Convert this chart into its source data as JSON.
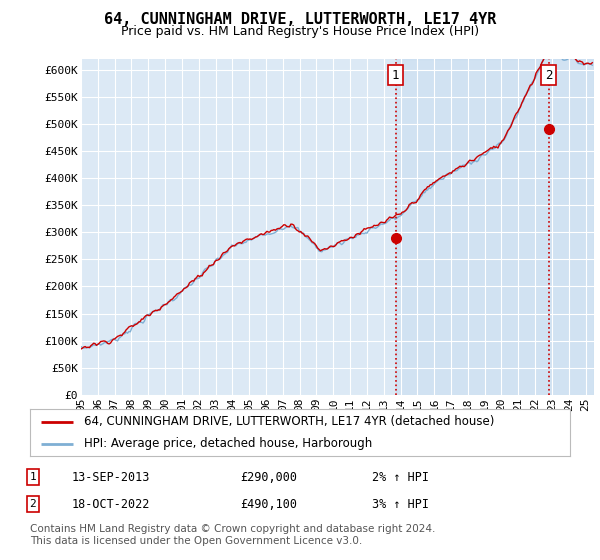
{
  "title": "64, CUNNINGHAM DRIVE, LUTTERWORTH, LE17 4YR",
  "subtitle": "Price paid vs. HM Land Registry's House Price Index (HPI)",
  "ylabel_ticks": [
    "£0",
    "£50K",
    "£100K",
    "£150K",
    "£200K",
    "£250K",
    "£300K",
    "£350K",
    "£400K",
    "£450K",
    "£500K",
    "£550K",
    "£600K"
  ],
  "ytick_values": [
    0,
    50000,
    100000,
    150000,
    200000,
    250000,
    300000,
    350000,
    400000,
    450000,
    500000,
    550000,
    600000
  ],
  "ylim": [
    0,
    620000
  ],
  "xlim_start": 1995.0,
  "xlim_end": 2025.5,
  "xtick_years": [
    1995,
    1996,
    1997,
    1998,
    1999,
    2000,
    2001,
    2002,
    2003,
    2004,
    2005,
    2006,
    2007,
    2008,
    2009,
    2010,
    2011,
    2012,
    2013,
    2014,
    2015,
    2016,
    2017,
    2018,
    2019,
    2020,
    2021,
    2022,
    2023,
    2024,
    2025
  ],
  "hpi_color": "#7fafd4",
  "price_color": "#cc0000",
  "marker1_x": 2013.7,
  "marker1_y": 290000,
  "marker2_x": 2022.8,
  "marker2_y": 490100,
  "vline_color": "#cc0000",
  "vline_style": "--",
  "shade_color": "#d0e4f5",
  "plot_bg_color": "#dce9f5",
  "grid_color": "#ffffff",
  "legend_line1": "64, CUNNINGHAM DRIVE, LUTTERWORTH, LE17 4YR (detached house)",
  "legend_line2": "HPI: Average price, detached house, Harborough",
  "table_row1": [
    "1",
    "13-SEP-2013",
    "£290,000",
    "2% ↑ HPI"
  ],
  "table_row2": [
    "2",
    "18-OCT-2022",
    "£490,100",
    "3% ↑ HPI"
  ],
  "footnote": "Contains HM Land Registry data © Crown copyright and database right 2024.\nThis data is licensed under the Open Government Licence v3.0.",
  "bg_color": "#ffffff",
  "title_fontsize": 11,
  "subtitle_fontsize": 9,
  "tick_fontsize": 8,
  "legend_fontsize": 8.5,
  "table_fontsize": 8.5,
  "footnote_fontsize": 7.5
}
